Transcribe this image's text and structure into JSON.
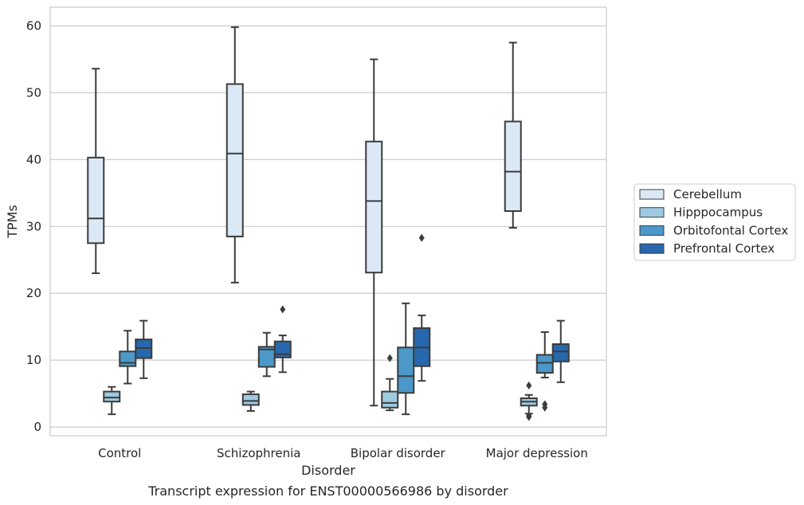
{
  "chart_data": {
    "type": "boxplot",
    "caption": "Transcript expression for ENST00000566986 by disorder",
    "xlabel": "Disorder",
    "ylabel": "TPMs",
    "ylim": [
      -1.3,
      62.8
    ],
    "yticks": [
      0,
      10,
      20,
      30,
      40,
      50,
      60
    ],
    "grid": "horizontal",
    "legend_position": "right",
    "categories": [
      "Control",
      "Schizophrenia",
      "Bipolar disorder",
      "Major depression"
    ],
    "series": [
      {
        "name": "Cerebellum",
        "color": "#dbe9f6",
        "boxes": [
          {
            "whisker_low": 23.0,
            "q1": 27.5,
            "median": 31.2,
            "q3": 40.3,
            "whisker_high": 53.6,
            "outliers": []
          },
          {
            "whisker_low": 21.6,
            "q1": 28.5,
            "median": 40.9,
            "q3": 51.3,
            "whisker_high": 59.8,
            "outliers": []
          },
          {
            "whisker_low": 3.2,
            "q1": 23.1,
            "median": 33.8,
            "q3": 42.7,
            "whisker_high": 55.0,
            "outliers": []
          },
          {
            "whisker_low": 29.8,
            "q1": 32.3,
            "median": 38.2,
            "q3": 45.7,
            "whisker_high": 57.5,
            "outliers": []
          }
        ]
      },
      {
        "name": "Hipppocampus",
        "color": "#9ecae1",
        "boxes": [
          {
            "whisker_low": 1.9,
            "q1": 3.8,
            "median": 4.4,
            "q3": 5.3,
            "whisker_high": 6.0,
            "outliers": []
          },
          {
            "whisker_low": 2.4,
            "q1": 3.3,
            "median": 3.9,
            "q3": 4.9,
            "whisker_high": 5.3,
            "outliers": []
          },
          {
            "whisker_low": 2.5,
            "q1": 2.9,
            "median": 3.6,
            "q3": 5.3,
            "whisker_high": 7.2,
            "outliers": [
              10.3
            ]
          },
          {
            "whisker_low": 2.0,
            "q1": 3.2,
            "median": 3.8,
            "q3": 4.3,
            "whisker_high": 4.8,
            "outliers": [
              1.7,
              1.5,
              6.2
            ]
          }
        ]
      },
      {
        "name": "Orbitofontal Cortex",
        "color": "#4b98c9",
        "boxes": [
          {
            "whisker_low": 6.5,
            "q1": 9.1,
            "median": 9.6,
            "q3": 11.3,
            "whisker_high": 14.4,
            "outliers": []
          },
          {
            "whisker_low": 7.6,
            "q1": 9.0,
            "median": 11.6,
            "q3": 12.0,
            "whisker_high": 14.1,
            "outliers": []
          },
          {
            "whisker_low": 1.9,
            "q1": 5.1,
            "median": 7.6,
            "q3": 11.9,
            "whisker_high": 18.5,
            "outliers": []
          },
          {
            "whisker_low": 7.4,
            "q1": 8.1,
            "median": 9.6,
            "q3": 10.8,
            "whisker_high": 14.2,
            "outliers": [
              3.4,
              2.9
            ]
          }
        ]
      },
      {
        "name": "Prefrontal Cortex",
        "color": "#2767ad",
        "boxes": [
          {
            "whisker_low": 7.3,
            "q1": 10.3,
            "median": 11.8,
            "q3": 13.1,
            "whisker_high": 15.9,
            "outliers": []
          },
          {
            "whisker_low": 8.2,
            "q1": 10.4,
            "median": 10.9,
            "q3": 12.8,
            "whisker_high": 13.7,
            "outliers": [
              17.6
            ]
          },
          {
            "whisker_low": 6.9,
            "q1": 9.1,
            "median": 11.9,
            "q3": 14.8,
            "whisker_high": 16.7,
            "outliers": [
              28.3
            ]
          },
          {
            "whisker_low": 6.7,
            "q1": 9.8,
            "median": 11.3,
            "q3": 12.4,
            "whisker_high": 15.9,
            "outliers": []
          }
        ]
      }
    ]
  }
}
